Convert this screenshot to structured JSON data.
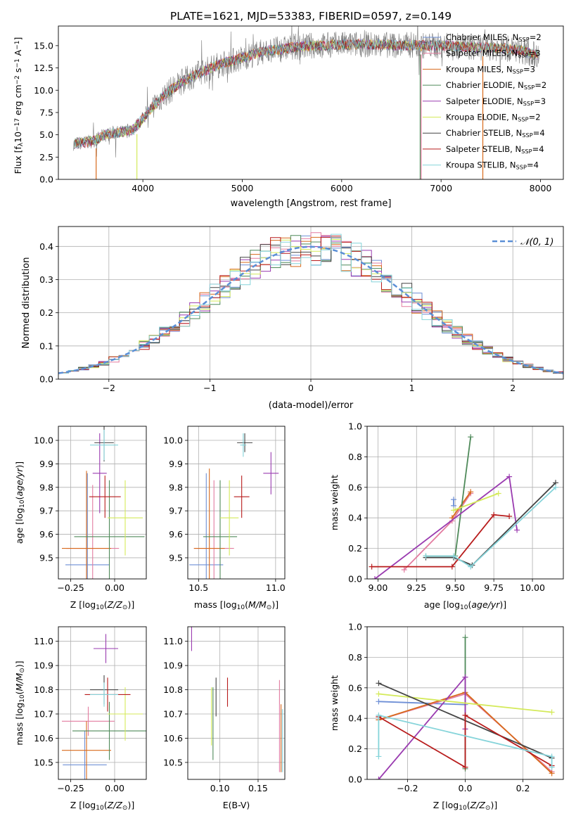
{
  "figure_title": "PLATE=1621, MJD=53383, FIBERID=0597, z=0.149",
  "models": [
    {
      "name": "Chabrier MILES",
      "nssp": "2",
      "color": "#6e8fd6"
    },
    {
      "name": "Salpeter MILES",
      "nssp": "3",
      "color": "#e37ca0"
    },
    {
      "name": "Kroupa MILES",
      "nssp": "3",
      "color": "#d86a1c"
    },
    {
      "name": "Chabrier ELODIE",
      "nssp": "2",
      "color": "#4f8a5a"
    },
    {
      "name": "Salpeter ELODIE",
      "nssp": "3",
      "color": "#9a3bb0"
    },
    {
      "name": "Kroupa ELODIE",
      "nssp": "2",
      "color": "#d4ea5a"
    },
    {
      "name": "Chabrier STELIB",
      "nssp": "4",
      "color": "#444444"
    },
    {
      "name": "Salpeter STELIB",
      "nssp": "4",
      "color": "#b81c1c"
    },
    {
      "name": "Kroupa STELIB",
      "nssp": "4",
      "color": "#86d4da"
    }
  ],
  "chart_data": [
    {
      "id": "spectrum",
      "type": "line",
      "xlabel": "wavelength [Angstrom, rest frame]",
      "ylabel": "Flux [f",
      "xlim": [
        3150,
        8230
      ],
      "ylim": [
        0,
        17.2
      ],
      "xticks": [
        4000,
        5000,
        6000,
        7000,
        8000
      ],
      "yticks": [
        "0.0",
        "2.5",
        "5.0",
        "7.5",
        "10.0",
        "12.5",
        "15.0"
      ],
      "legend_loc": "right",
      "grid": false,
      "data_color": "#7a7a7a",
      "continuum": {
        "x": [
          3300,
          3400,
          3500,
          3600,
          3700,
          3800,
          3900,
          4000,
          4100,
          4200,
          4300,
          4400,
          4500,
          4600,
          4700,
          4800,
          4900,
          5000,
          5100,
          5200,
          5300,
          5400,
          5500,
          5600,
          5700,
          5800,
          5900,
          6000,
          6100,
          6200,
          6300,
          6400,
          6500,
          6600,
          6700,
          6800,
          6900,
          7000,
          7100,
          7200,
          7300,
          7400,
          7500,
          7600,
          7700,
          7800,
          7900,
          8000
        ],
        "y": [
          4.0,
          4.1,
          4.3,
          4.9,
          5.2,
          5.3,
          5.6,
          6.8,
          8.2,
          9.3,
          10.2,
          11.0,
          11.6,
          12.1,
          12.6,
          13.0,
          13.3,
          13.6,
          14.0,
          14.3,
          14.5,
          14.6,
          14.8,
          14.9,
          15.0,
          15.0,
          15.1,
          15.1,
          15.1,
          15.2,
          15.1,
          15.1,
          15.1,
          15.0,
          15.1,
          15.0,
          15.0,
          15.0,
          15.0,
          14.9,
          14.8,
          14.8,
          14.8,
          14.7,
          14.6,
          14.5,
          14.1,
          13.9
        ]
      },
      "drop_lines_x": [
        3530,
        3940,
        6790,
        6800,
        7420
      ]
    },
    {
      "id": "residual_histogram",
      "type": "bar",
      "xlabel": "(data-model)/error",
      "ylabel": "Normed distribution",
      "xlim": [
        -2.5,
        2.5
      ],
      "ylim": [
        0,
        0.46
      ],
      "xticks": [
        "-2",
        "-1",
        "0",
        "1",
        "2"
      ],
      "yticks": [
        "0.0",
        "0.1",
        "0.2",
        "0.3",
        "0.4"
      ],
      "grid": true,
      "bin_width": 0.1,
      "reference_curve": {
        "label": "𝒩(0, 1)",
        "color": "#5b8fd6",
        "style": "dashed"
      },
      "legend_loc": "upper right"
    },
    {
      "id": "z_vs_age",
      "type": "scatter",
      "xlabel": "Z [log",
      "ylabel": "age  [log",
      "xlim": [
        -0.32,
        0.18
      ],
      "ylim": [
        9.41,
        10.06
      ],
      "xticks": [
        "-0.25",
        "0.00"
      ],
      "xtick_values": [
        -0.25,
        0.0
      ],
      "yticks": [
        "9.5",
        "9.6",
        "9.7",
        "9.8",
        "9.9",
        "10.0"
      ],
      "grid": true,
      "points": [
        {
          "model": 0,
          "x": -0.155,
          "xerr": 0.125,
          "y": 9.47,
          "yerr": 0.39
        },
        {
          "model": 1,
          "x": -0.125,
          "xerr": 0.15,
          "y": 9.54,
          "yerr": 0.27
        },
        {
          "model": 2,
          "x": -0.16,
          "xerr": 0.14,
          "y": 9.54,
          "yerr": 0.33
        },
        {
          "model": 3,
          "x": -0.03,
          "xerr": 0.2,
          "y": 9.59,
          "yerr": 0.24
        },
        {
          "model": 4,
          "x": -0.085,
          "xerr": 0.04,
          "y": 9.86,
          "yerr": 0.17
        },
        {
          "model": 5,
          "x": 0.06,
          "xerr": 0.1,
          "y": 9.67,
          "yerr": 0.16
        },
        {
          "model": 6,
          "x": -0.06,
          "xerr": 0.055,
          "y": 9.99,
          "yerr": 0.08
        },
        {
          "model": 7,
          "x": -0.055,
          "xerr": 0.09,
          "y": 9.76,
          "yerr": 0.09
        },
        {
          "model": 8,
          "x": -0.06,
          "xerr": 0.08,
          "y": 9.98,
          "yerr": 0.065
        }
      ]
    },
    {
      "id": "mass_vs_age",
      "type": "scatter",
      "xlabel": "mass [log",
      "ylabel": "",
      "xlim": [
        10.43,
        11.06
      ],
      "ylim": [
        9.41,
        10.06
      ],
      "xticks": [
        "10.5",
        "11.0"
      ],
      "xtick_values": [
        10.5,
        11.0
      ],
      "yticks": [
        "9.5",
        "9.6",
        "9.7",
        "9.8",
        "9.9",
        "10.0"
      ],
      "grid": true,
      "points": [
        {
          "model": 0,
          "x": 10.55,
          "xerr": 0.11,
          "y": 9.47,
          "yerr": 0.39
        },
        {
          "model": 1,
          "x": 10.6,
          "xerr": 0.13,
          "y": 9.54,
          "yerr": 0.29
        },
        {
          "model": 2,
          "x": 10.57,
          "xerr": 0.1,
          "y": 9.54,
          "yerr": 0.34
        },
        {
          "model": 3,
          "x": 10.64,
          "xerr": 0.11,
          "y": 9.59,
          "yerr": 0.24
        },
        {
          "model": 4,
          "x": 10.97,
          "xerr": 0.05,
          "y": 9.86,
          "yerr": 0.09
        },
        {
          "model": 5,
          "x": 10.7,
          "xerr": 0.06,
          "y": 9.67,
          "yerr": 0.16
        },
        {
          "model": 6,
          "x": 10.8,
          "xerr": 0.05,
          "y": 9.99,
          "yerr": 0.04
        },
        {
          "model": 7,
          "x": 10.78,
          "xerr": 0.05,
          "y": 9.76,
          "yerr": 0.09
        },
        {
          "model": 8,
          "x": 10.79,
          "xerr": 0.02,
          "y": 9.98,
          "yerr": 0.05
        }
      ]
    },
    {
      "id": "age_vs_weight",
      "type": "line",
      "xlabel": "age  [log",
      "ylabel": "mass weight",
      "xlim": [
        8.93,
        10.2
      ],
      "ylim": [
        0,
        1
      ],
      "xticks": [
        "9.00",
        "9.25",
        "9.50",
        "9.75",
        "10.00"
      ],
      "xtick_values": [
        9.0,
        9.25,
        9.5,
        9.75,
        10.0
      ],
      "yticks": [
        "0.0",
        "0.2",
        "0.4",
        "0.6",
        "0.8",
        "1.0"
      ],
      "grid": true,
      "series": [
        {
          "model": 0,
          "x": [
            9.49,
            9.49
          ],
          "y": [
            0.48,
            0.52
          ]
        },
        {
          "model": 1,
          "x": [
            9.17,
            9.48,
            9.6
          ],
          "y": [
            0.06,
            0.38,
            0.56
          ]
        },
        {
          "model": 2,
          "x": [
            9.48,
            9.6
          ],
          "y": [
            0.4,
            0.57
          ]
        },
        {
          "model": 3,
          "x": [
            9.31,
            9.5,
            9.6
          ],
          "y": [
            0.15,
            0.15,
            0.93
          ]
        },
        {
          "model": 4,
          "x": [
            8.98,
            9.85,
            9.9
          ],
          "y": [
            0.0,
            0.67,
            0.32
          ]
        },
        {
          "model": 5,
          "x": [
            9.49,
            9.78
          ],
          "y": [
            0.45,
            0.56
          ]
        },
        {
          "model": 6,
          "x": [
            9.31,
            9.49,
            9.61,
            10.15
          ],
          "y": [
            0.14,
            0.14,
            0.09,
            0.63
          ]
        },
        {
          "model": 7,
          "x": [
            8.96,
            9.48,
            9.75,
            9.85
          ],
          "y": [
            0.08,
            0.08,
            0.42,
            0.41
          ]
        },
        {
          "model": 8,
          "x": [
            9.31,
            9.49,
            9.6,
            10.15
          ],
          "y": [
            0.15,
            0.15,
            0.08,
            0.6
          ]
        }
      ]
    },
    {
      "id": "z_vs_mass",
      "type": "scatter",
      "xlabel": "Z [log",
      "ylabel": "mass [log",
      "xlim": [
        -0.32,
        0.18
      ],
      "ylim": [
        10.43,
        11.06
      ],
      "xticks": [
        "-0.25",
        "0.00"
      ],
      "xtick_values": [
        -0.25,
        0.0
      ],
      "yticks": [
        "10.5",
        "10.6",
        "10.7",
        "10.8",
        "10.9",
        "11.0"
      ],
      "grid": true,
      "points": [
        {
          "model": 0,
          "x": -0.17,
          "xerr": 0.125,
          "y": 10.49,
          "yerr": 0.14
        },
        {
          "model": 1,
          "x": -0.15,
          "xerr": 0.15,
          "y": 10.67,
          "yerr": 0.06
        },
        {
          "model": 2,
          "x": -0.16,
          "xerr": 0.14,
          "y": 10.55,
          "yerr": 0.12
        },
        {
          "model": 3,
          "x": -0.03,
          "xerr": 0.21,
          "y": 10.63,
          "yerr": 0.12
        },
        {
          "model": 4,
          "x": -0.05,
          "xerr": 0.07,
          "y": 10.97,
          "yerr": 0.06
        },
        {
          "model": 5,
          "x": 0.06,
          "xerr": 0.1,
          "y": 10.7,
          "yerr": 0.11
        },
        {
          "model": 6,
          "x": -0.06,
          "xerr": 0.08,
          "y": 10.8,
          "yerr": 0.06
        },
        {
          "model": 7,
          "x": -0.04,
          "xerr": 0.13,
          "y": 10.78,
          "yerr": 0.07
        },
        {
          "model": 8,
          "x": -0.06,
          "xerr": 0.08,
          "y": 10.78,
          "yerr": 0.05
        }
      ]
    },
    {
      "id": "ebv_vs_mass",
      "type": "scatter",
      "xlabel": "E(B-V)",
      "ylabel": "",
      "xlim": [
        0.058,
        0.185
      ],
      "ylim": [
        10.43,
        11.06
      ],
      "xticks": [
        "0.10",
        "0.15"
      ],
      "xtick_values": [
        0.1,
        0.15
      ],
      "yticks": [
        "10.5",
        "10.6",
        "10.7",
        "10.8",
        "10.9",
        "11.0"
      ],
      "grid": true,
      "points": [
        {
          "model": 0,
          "x": 0.18,
          "xerr": 0,
          "y": 10.59,
          "yerr": 0.13
        },
        {
          "model": 1,
          "x": 0.178,
          "xerr": 0,
          "y": 10.65,
          "yerr": 0.19
        },
        {
          "model": 2,
          "x": 0.18,
          "xerr": 0,
          "y": 10.6,
          "yerr": 0.14
        },
        {
          "model": 3,
          "x": 0.091,
          "xerr": 0,
          "y": 10.66,
          "yerr": 0.15
        },
        {
          "model": 4,
          "x": 0.063,
          "xerr": 0,
          "y": 11.02,
          "yerr": 0.06
        },
        {
          "model": 5,
          "x": 0.089,
          "xerr": 0,
          "y": 10.69,
          "yerr": 0.12
        },
        {
          "model": 6,
          "x": 0.095,
          "xerr": 0,
          "y": 10.77,
          "yerr": 0.08
        },
        {
          "model": 7,
          "x": 0.11,
          "xerr": 0,
          "y": 10.79,
          "yerr": 0.06
        },
        {
          "model": 8,
          "x": 0.182,
          "xerr": 0,
          "y": 10.59,
          "yerr": 0.13
        }
      ]
    },
    {
      "id": "z_vs_weight",
      "type": "line",
      "xlabel": "Z [log",
      "ylabel": "mass weight",
      "xlim": [
        -0.34,
        0.34
      ],
      "ylim": [
        0,
        1
      ],
      "xticks": [
        "-0.2",
        "0.0",
        "0.2"
      ],
      "xtick_values": [
        -0.2,
        0.0,
        0.2
      ],
      "yticks": [
        "0.0",
        "0.2",
        "0.4",
        "0.6",
        "0.8",
        "1.0"
      ],
      "grid": true,
      "series": [
        {
          "model": 0,
          "x": [
            -0.3,
            0.0
          ],
          "y": [
            0.51,
            0.49
          ]
        },
        {
          "model": 1,
          "x": [
            -0.3,
            0.0,
            0.3
          ],
          "y": [
            0.39,
            0.56,
            0.05
          ]
        },
        {
          "model": 2,
          "x": [
            -0.3,
            0.0,
            0.3
          ],
          "y": [
            0.39,
            0.57,
            0.04
          ]
        },
        {
          "model": 3,
          "x": [
            0.0,
            0.0
          ],
          "y": [
            0.07,
            0.93
          ]
        },
        {
          "model": 4,
          "x": [
            -0.3,
            0.0,
            0.0
          ],
          "y": [
            0.0,
            0.67,
            0.33
          ]
        },
        {
          "model": 5,
          "x": [
            -0.3,
            0.3
          ],
          "y": [
            0.56,
            0.44
          ]
        },
        {
          "model": 6,
          "x": [
            -0.3,
            0.3
          ],
          "y": [
            0.63,
            0.14
          ]
        },
        {
          "model": 7,
          "x": [
            -0.3,
            0.0,
            0.0,
            0.3
          ],
          "y": [
            0.41,
            0.08,
            0.42,
            0.09
          ]
        },
        {
          "model": 8,
          "x": [
            -0.3,
            -0.3,
            0.3,
            0.3
          ],
          "y": [
            0.15,
            0.42,
            0.15,
            0.08
          ]
        }
      ]
    }
  ]
}
